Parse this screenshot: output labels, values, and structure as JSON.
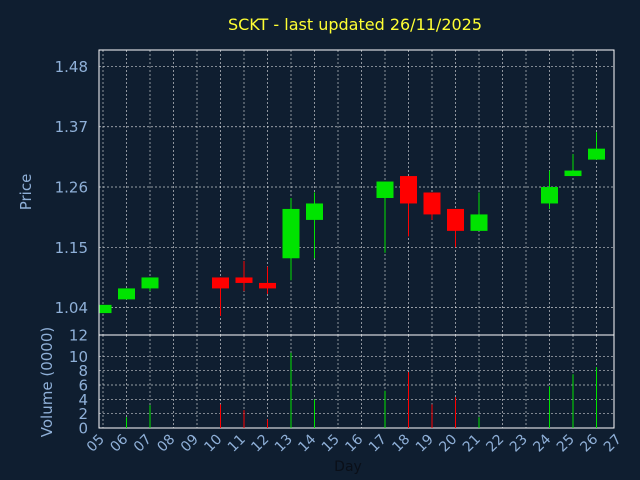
{
  "colors": {
    "background": "#0f1e30",
    "plot_frame": "#ffffff",
    "grid": "#ffffff",
    "title": "#ffff33",
    "axis_text": "#8fb0d8",
    "up": "#00e400",
    "down": "#ff0000"
  },
  "chart_data": {
    "type": "candlestick",
    "title": "SCKT - last updated 26/11/2025",
    "grid": true,
    "price_panel": {
      "ylabel": "Price",
      "ylim": [
        0.99,
        1.51
      ],
      "yticks": [
        "1.48",
        "1.37",
        "1.26",
        "1.15",
        "1.04"
      ],
      "ytick_values": [
        1.48,
        1.37,
        1.26,
        1.15,
        1.04
      ]
    },
    "volume_panel": {
      "ylabel": "Volume (0000)",
      "ylim": [
        0,
        12
      ],
      "yticks": [
        "12",
        "10",
        "8",
        "6",
        "4",
        "2",
        "0"
      ],
      "ytick_values": [
        12,
        10,
        8,
        6,
        4,
        2,
        0
      ]
    },
    "xlabel": "Day",
    "x_ticks": [
      "05",
      "06",
      "07",
      "08",
      "09",
      "10",
      "11",
      "12",
      "13",
      "14",
      "15",
      "16",
      "17",
      "18",
      "19",
      "20",
      "21",
      "22",
      "23",
      "24",
      "25",
      "26",
      "27"
    ],
    "candles": [
      {
        "day": "05",
        "open": 1.03,
        "high": 1.045,
        "low": 1.03,
        "close": 1.045,
        "volume": 0.0
      },
      {
        "day": "06",
        "open": 1.055,
        "high": 1.075,
        "low": 1.055,
        "close": 1.075,
        "volume": 1.5
      },
      {
        "day": "07",
        "open": 1.075,
        "high": 1.095,
        "low": 1.07,
        "close": 1.095,
        "volume": 3.2
      },
      {
        "day": "10",
        "open": 1.095,
        "high": 1.095,
        "low": 1.025,
        "close": 1.075,
        "volume": 3.3
      },
      {
        "day": "11",
        "open": 1.095,
        "high": 1.125,
        "low": 1.07,
        "close": 1.085,
        "volume": 2.5
      },
      {
        "day": "12",
        "open": 1.085,
        "high": 1.115,
        "low": 1.065,
        "close": 1.075,
        "volume": 1.2
      },
      {
        "day": "13",
        "open": 1.13,
        "high": 1.24,
        "low": 1.09,
        "close": 1.22,
        "volume": 10.5
      },
      {
        "day": "14",
        "open": 1.2,
        "high": 1.25,
        "low": 1.13,
        "close": 1.23,
        "volume": 4.0
      },
      {
        "day": "17",
        "open": 1.24,
        "high": 1.27,
        "low": 1.14,
        "close": 1.27,
        "volume": 5.2
      },
      {
        "day": "18",
        "open": 1.28,
        "high": 1.28,
        "low": 1.17,
        "close": 1.23,
        "volume": 7.8
      },
      {
        "day": "19",
        "open": 1.25,
        "high": 1.25,
        "low": 1.2,
        "close": 1.21,
        "volume": 3.3
      },
      {
        "day": "20",
        "open": 1.22,
        "high": 1.22,
        "low": 1.15,
        "close": 1.18,
        "volume": 4.3
      },
      {
        "day": "21",
        "open": 1.18,
        "high": 1.25,
        "low": 1.18,
        "close": 1.21,
        "volume": 1.5
      },
      {
        "day": "24",
        "open": 1.23,
        "high": 1.29,
        "low": 1.22,
        "close": 1.26,
        "volume": 5.8
      },
      {
        "day": "25",
        "open": 1.28,
        "high": 1.32,
        "low": 1.28,
        "close": 1.29,
        "volume": 7.5
      },
      {
        "day": "26",
        "open": 1.31,
        "high": 1.36,
        "low": 1.31,
        "close": 1.33,
        "volume": 8.5
      }
    ]
  }
}
